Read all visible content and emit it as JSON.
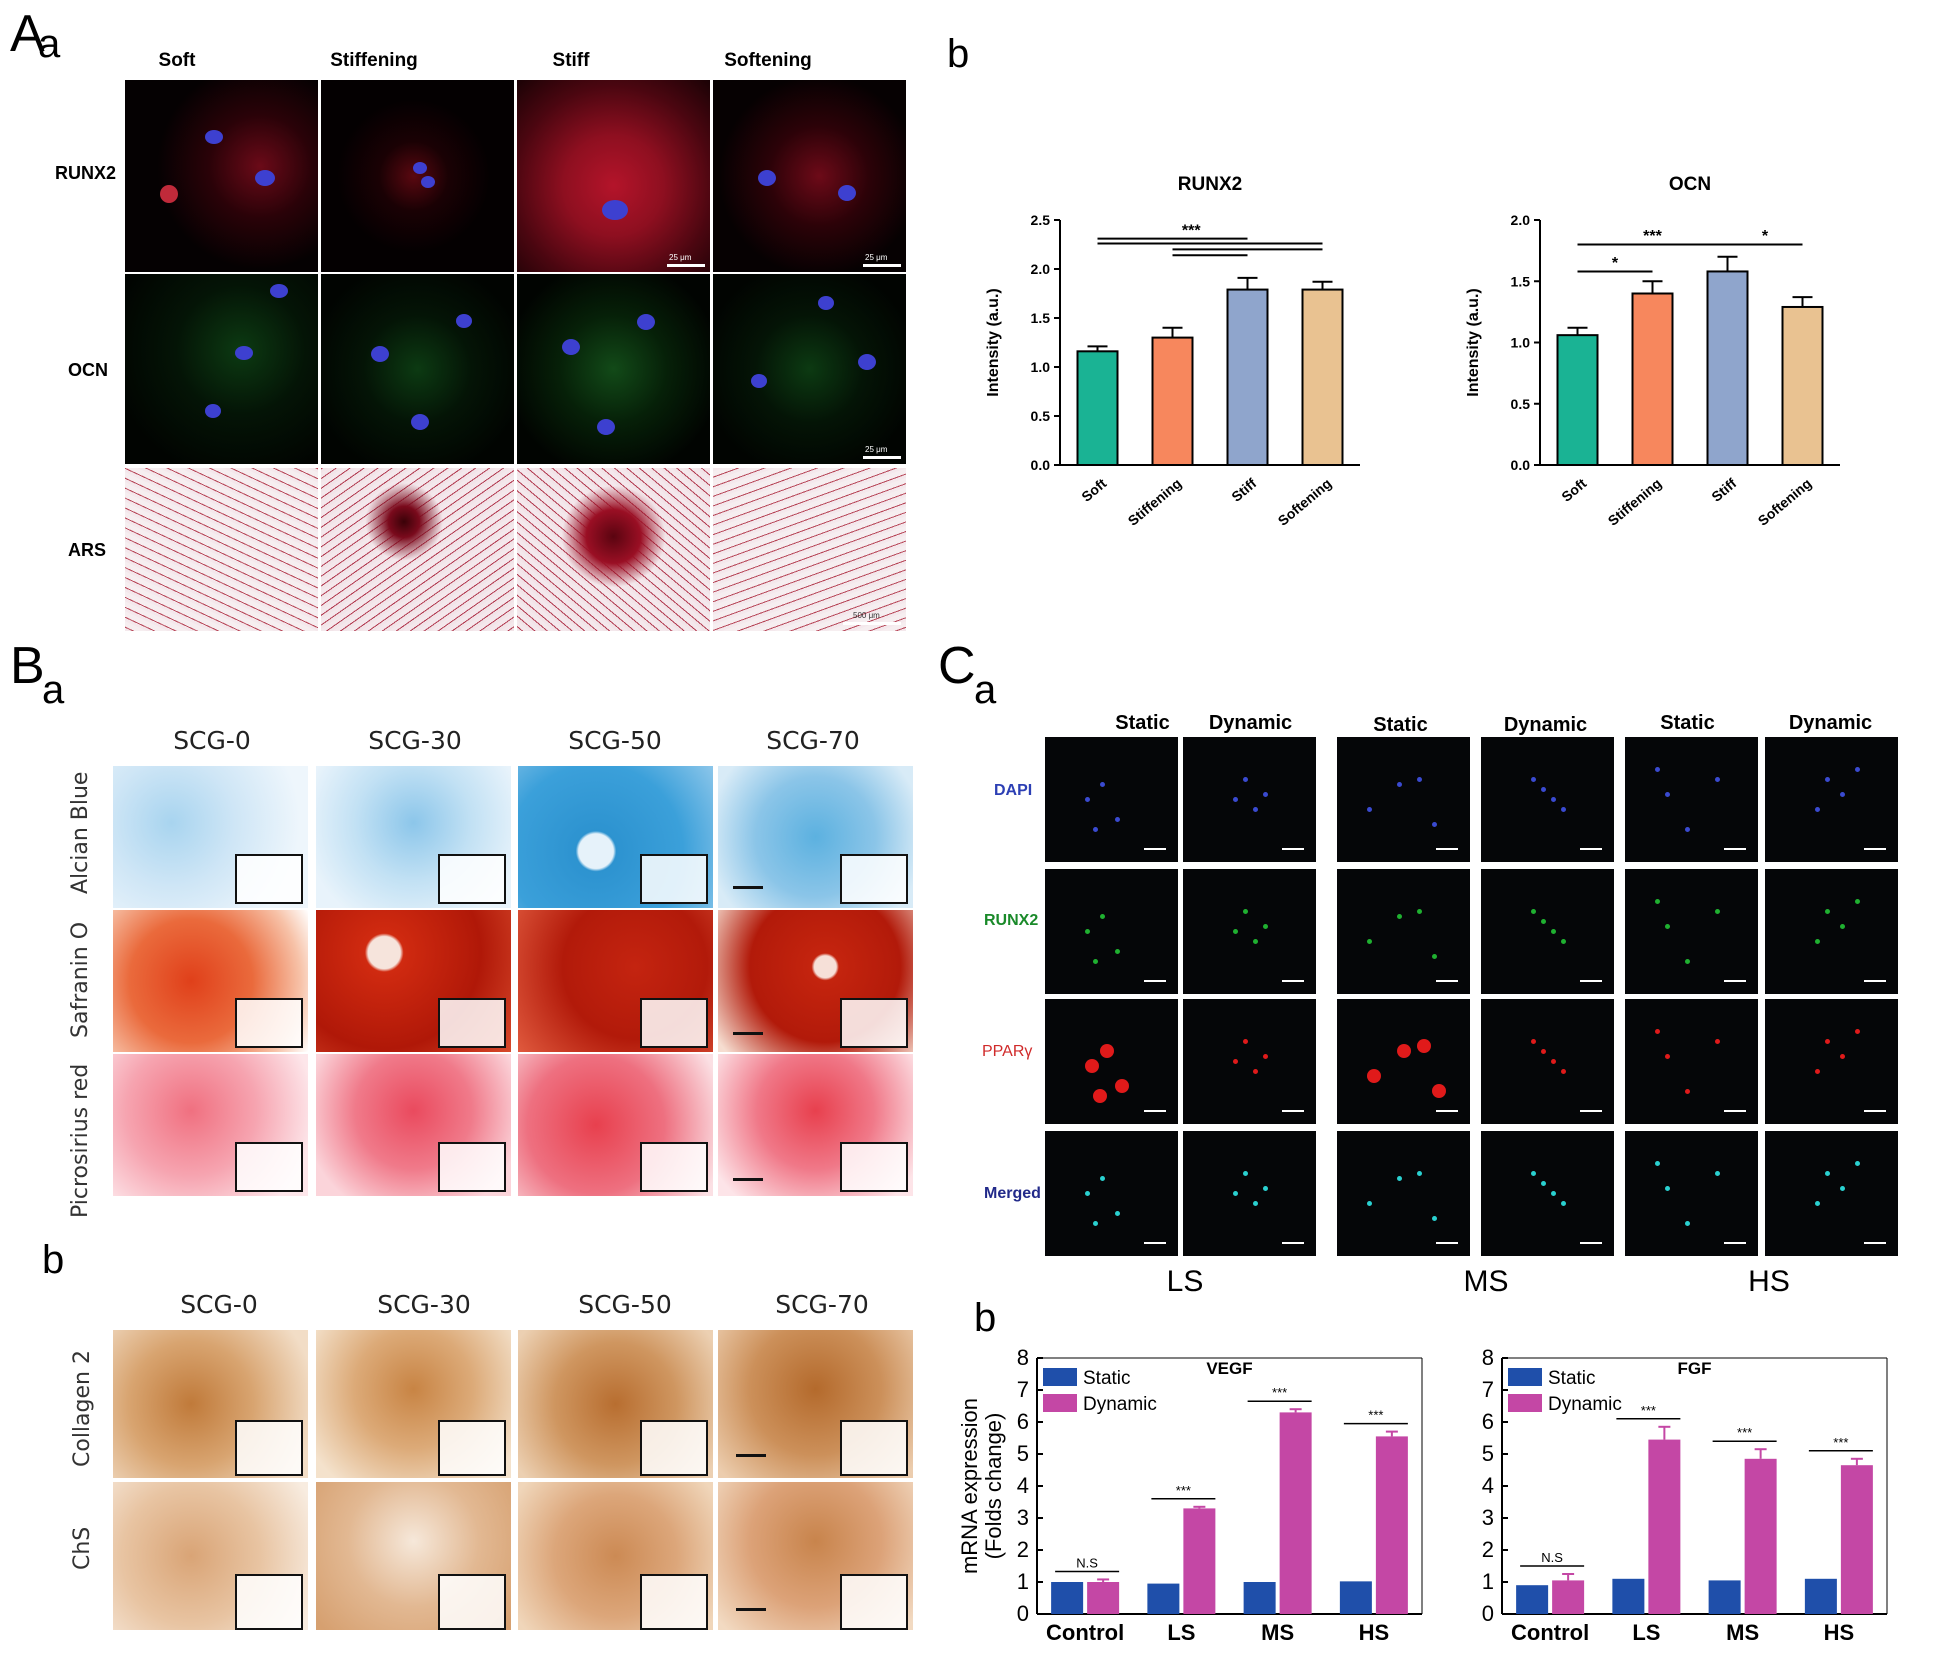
{
  "figure": {
    "panel_A": {
      "letter": "A",
      "sub_a": "a",
      "sub_b": "b",
      "columns": [
        "Soft",
        "Stiffening",
        "Stiff",
        "Softening"
      ],
      "rows": [
        "RUNX2",
        "OCN",
        "ARS"
      ],
      "scale_bars": [
        "25 μm",
        "25 μm",
        "500 μm"
      ]
    },
    "panel_B": {
      "letter": "B",
      "sub_a": "a",
      "sub_b": "b",
      "columns_a": [
        "SCG-0",
        "SCG-30",
        "SCG-50",
        "SCG-70"
      ],
      "rows_a": [
        "Alcian Blue",
        "Safranin O",
        "Picrosirius red"
      ],
      "columns_b": [
        "SCG-0",
        "SCG-30",
        "SCG-50",
        "SCG-70"
      ],
      "rows_b": [
        "Collagen 2",
        "ChS"
      ]
    },
    "panel_C": {
      "letter": "C",
      "sub_a": "a",
      "sub_b": "b",
      "columns": [
        "Static",
        "Dynamic",
        "Static",
        "Dynamic",
        "Static",
        "Dynamic"
      ],
      "rows": [
        "DAPI",
        "RUNX2",
        "PPARγ",
        "Merged"
      ],
      "groups": [
        "LS",
        "MS",
        "HS"
      ]
    }
  },
  "colors": {
    "soft": "#1ab394",
    "stiffening": "#f7875d",
    "stiff": "#8fa5cc",
    "softening": "#e9c291",
    "static": "#1f4faa",
    "dynamic": "#c447a5"
  },
  "chart_data": [
    {
      "id": "runx2",
      "type": "bar",
      "title": "RUNX2",
      "ylabel": "Intensity  (a.u.)",
      "categories": [
        "Soft",
        "Stiffening",
        "Stiff",
        "Softening"
      ],
      "values": [
        1.16,
        1.3,
        1.79,
        1.79
      ],
      "errors": [
        0.05,
        0.1,
        0.12,
        0.08
      ],
      "ylim": [
        0,
        2.5
      ],
      "yticks": [
        "0.0",
        "0.5",
        "1.0",
        "1.5",
        "2.0",
        "2.5"
      ],
      "annotations": [
        "***"
      ]
    },
    {
      "id": "ocn",
      "type": "bar",
      "title": "OCN",
      "ylabel": "Intensity  (a.u.)",
      "categories": [
        "Soft",
        "Stiffening",
        "Stiff",
        "Softening"
      ],
      "values": [
        1.06,
        1.4,
        1.58,
        1.29
      ],
      "errors": [
        0.06,
        0.1,
        0.12,
        0.08
      ],
      "ylim": [
        0,
        2.0
      ],
      "yticks": [
        "0.0",
        "0.5",
        "1.0",
        "1.5",
        "2.0"
      ],
      "annotations": [
        "***",
        "*",
        "*"
      ]
    },
    {
      "id": "vegf",
      "type": "bar",
      "title": "VEGF",
      "ylabel": "mRNA expression\n(Folds change)",
      "categories": [
        "Control",
        "LS",
        "MS",
        "HS"
      ],
      "series": [
        {
          "name": "Static",
          "values": [
            1.0,
            0.95,
            1.0,
            1.02
          ]
        },
        {
          "name": "Dynamic",
          "values": [
            1.0,
            3.3,
            6.3,
            5.55
          ]
        }
      ],
      "errors_dynamic": [
        0.08,
        0.05,
        0.1,
        0.15
      ],
      "ylim": [
        0,
        8
      ],
      "yticks": [
        "0",
        "1",
        "2",
        "3",
        "4",
        "5",
        "6",
        "7",
        "8"
      ],
      "annotations": [
        "N.S",
        "***",
        "***",
        "***"
      ]
    },
    {
      "id": "fgf",
      "type": "bar",
      "title": "FGF",
      "ylabel": "",
      "categories": [
        "Control",
        "LS",
        "MS",
        "HS"
      ],
      "series": [
        {
          "name": "Static",
          "values": [
            0.9,
            1.1,
            1.05,
            1.1
          ]
        },
        {
          "name": "Dynamic",
          "values": [
            1.05,
            5.45,
            4.85,
            4.65
          ]
        }
      ],
      "errors_dynamic": [
        0.2,
        0.4,
        0.3,
        0.2
      ],
      "ylim": [
        0,
        8
      ],
      "yticks": [
        "0",
        "1",
        "2",
        "3",
        "4",
        "5",
        "6",
        "7",
        "8"
      ],
      "annotations": [
        "N.S",
        "***",
        "***",
        "***"
      ]
    }
  ]
}
